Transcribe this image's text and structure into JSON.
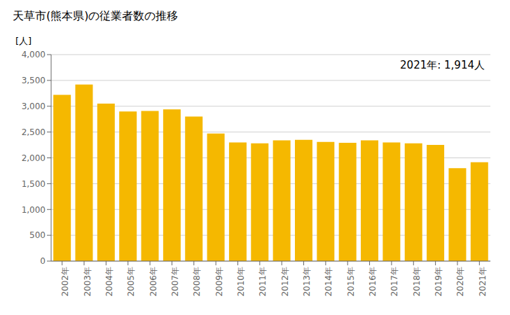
{
  "chart_data": {
    "type": "bar",
    "title": "天草市(熊本県)の従業者数の推移",
    "ylabel": "[人]",
    "annotation": "2021年: 1,914人",
    "categories": [
      "2002年",
      "2003年",
      "2004年",
      "2005年",
      "2006年",
      "2007年",
      "2008年",
      "2009年",
      "2010年",
      "2011年",
      "2012年",
      "2013年",
      "2014年",
      "2015年",
      "2016年",
      "2017年",
      "2018年",
      "2019年",
      "2020年",
      "2021年"
    ],
    "values": [
      3220,
      3420,
      3050,
      2900,
      2910,
      2940,
      2800,
      2470,
      2300,
      2280,
      2340,
      2350,
      2310,
      2290,
      2340,
      2300,
      2280,
      2250,
      1800,
      1914
    ],
    "color": "#F5B800",
    "ylim": [
      0,
      4000
    ],
    "yticks": [
      0,
      500,
      {
        "value": 1000,
        "label": "1,000"
      },
      {
        "value": 1500,
        "label": "1,500"
      },
      {
        "value": 2000,
        "label": "2,000"
      },
      {
        "value": 2500,
        "label": "2,500"
      },
      {
        "value": 3000,
        "label": "3,000"
      },
      {
        "value": 3500,
        "label": "3,500"
      },
      {
        "value": 4000,
        "label": "4,000"
      }
    ],
    "grid": true
  }
}
